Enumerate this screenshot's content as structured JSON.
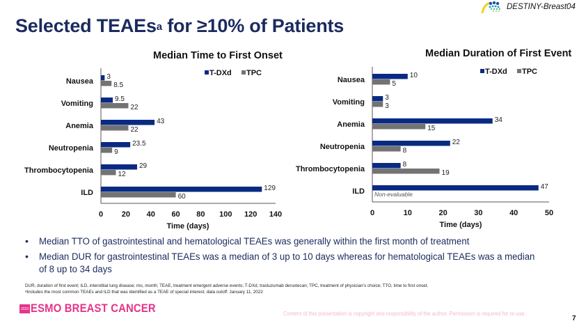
{
  "slide": {
    "title_main": "Selected TEAEs",
    "title_sup": "a",
    "title_rest": " for ≥10% of Patients",
    "brand_text": "DESTINY-Breast04",
    "brand_icon": "destiny-trial-logo-icon",
    "page_number": "7"
  },
  "colors": {
    "tdxd": "#0a2a82",
    "tpc": "#737373",
    "title": "#1b2a5e",
    "esmo_pink": "#e5348a"
  },
  "chart_data": [
    {
      "type": "bar",
      "orientation": "horizontal",
      "title": "Median Time to First Onset",
      "xlabel": "Time (days)",
      "ylabel": "",
      "categories": [
        "Nausea",
        "Vomiting",
        "Anemia",
        "Neutropenia",
        "Thrombocytopenia",
        "ILD"
      ],
      "series": [
        {
          "name": "T-DXd",
          "color": "#0a2a82",
          "values": [
            3,
            9.5,
            43,
            23.5,
            29,
            129
          ],
          "labels": [
            "3",
            "9.5",
            "43",
            "23.5",
            "29",
            "129"
          ]
        },
        {
          "name": "TPC",
          "color": "#737373",
          "values": [
            8.5,
            22,
            22,
            9,
            12,
            60
          ],
          "labels": [
            "8.5",
            "22",
            "22",
            "9",
            "12",
            "60"
          ]
        }
      ],
      "xlim": [
        0,
        140
      ],
      "xticks": [
        0,
        20,
        40,
        60,
        80,
        100,
        120,
        140
      ],
      "grid": false,
      "legend": "top-right",
      "annotations": []
    },
    {
      "type": "bar",
      "orientation": "horizontal",
      "title": "Median Duration of First Event",
      "xlabel": "Time (days)",
      "ylabel": "",
      "categories": [
        "Nausea",
        "Vomiting",
        "Anemia",
        "Neutropenia",
        "Thrombocytopenia",
        "ILD"
      ],
      "series": [
        {
          "name": "T-DXd",
          "color": "#0a2a82",
          "values": [
            10,
            3,
            34,
            22,
            8,
            47
          ],
          "labels": [
            "10",
            "3",
            "34",
            "22",
            "8",
            "47"
          ]
        },
        {
          "name": "TPC",
          "color": "#737373",
          "values": [
            5,
            3,
            15,
            8,
            19,
            null
          ],
          "labels": [
            "5",
            "3",
            "15",
            "8",
            "19",
            ""
          ]
        }
      ],
      "xlim": [
        0,
        50
      ],
      "xticks": [
        0,
        10,
        20,
        30,
        40,
        50
      ],
      "grid": false,
      "legend": "top-right",
      "annotations": [
        {
          "category": "ILD",
          "series": "TPC",
          "text": "Non-evaluable"
        }
      ]
    }
  ],
  "bullets": [
    "Median TTO of gastrointestinal and hematological TEAEs was generally within the first month of treatment",
    "Median DUR for gastrointestinal TEAEs was a median of 3 up to 10 days whereas for hematological TEAEs was a median of 8 up to 34 days"
  ],
  "footnotes": {
    "abbreviations": "DUR, duration of first event; ILD, interstitial lung disease; mo, month; TEAE, treatment emergent adverse events; T-DXd, trastuzumab deruxtecan; TPC, treatment of physician’s choice; TTO, time to first onset.",
    "note": "ᵃIncludes the most common TEAEs and ILD that was identified as a TEAE of special interest; data cutoff: January 11, 2022"
  },
  "footer": {
    "esmo_year": "2023",
    "esmo_text": "ESMO BREAST CANCER",
    "copyright": "Content of this presentation is copyright and responsibility of the author. Permission is required for re-use."
  }
}
